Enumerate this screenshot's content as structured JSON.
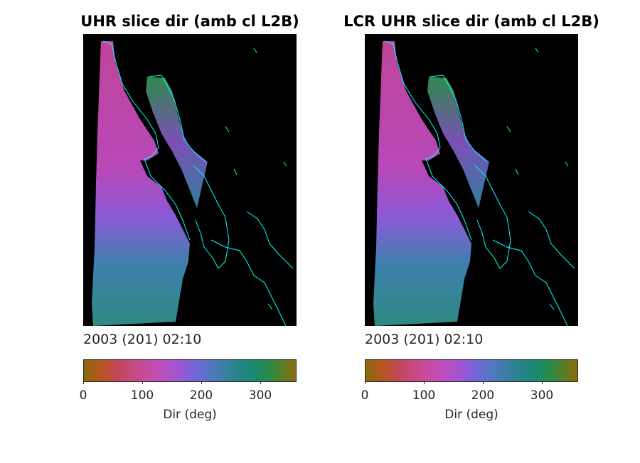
{
  "panels": [
    {
      "title": "UHR slice dir (amb cl L2B)",
      "timestamp": "2003 (201) 02:10",
      "colorbar": {
        "label": "Dir (deg)",
        "ticks": [
          "0",
          "100",
          "200",
          "300"
        ],
        "range": [
          0,
          360
        ]
      }
    },
    {
      "title": "LCR UHR slice dir (amb cl L2B)",
      "timestamp": "2003 (201) 02:10",
      "colorbar": {
        "label": "Dir (deg)",
        "ticks": [
          "0",
          "100",
          "200",
          "300"
        ],
        "range": [
          0,
          360
        ]
      }
    }
  ],
  "colors": {
    "background": "#000000",
    "coastline": "#00ffff",
    "pink_region": "#c04aa0",
    "violet_region": "#8a5ad8",
    "teal_region": "#2d8a85",
    "green_region": "#2e7d3a"
  }
}
